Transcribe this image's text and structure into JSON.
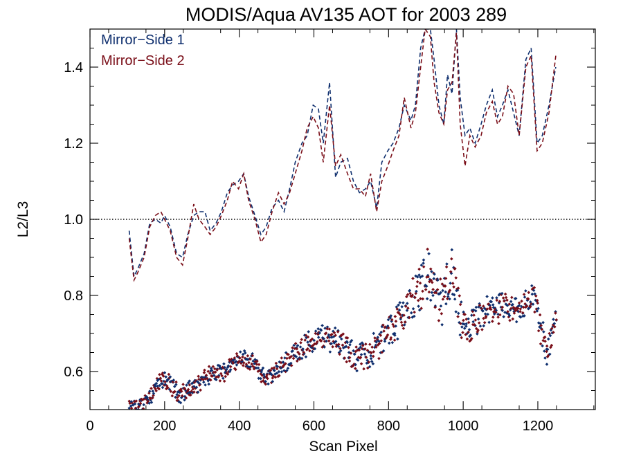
{
  "chart_data": {
    "type": "line",
    "title": "MODIS/Aqua AV135 AOT for 2003 289",
    "xlabel": "Scan Pixel",
    "ylabel": "L2/L3",
    "xlim": [
      0,
      1354
    ],
    "ylim": [
      0.5,
      1.5
    ],
    "xticks": [
      0,
      200,
      400,
      600,
      800,
      1000,
      1200
    ],
    "yticks": [
      0.6,
      0.8,
      1.0,
      1.2,
      1.4
    ],
    "xtick_labels": [
      "0",
      "200",
      "400",
      "600",
      "800",
      "1000",
      "1200"
    ],
    "ytick_labels": [
      "0.6",
      "0.8",
      "1.0",
      "1.2",
      "1.4"
    ],
    "reference_line": {
      "y": 1.0,
      "style": "dotted"
    },
    "grid": false,
    "legend_position": "top-left",
    "series": [
      {
        "name": "Mirror−Side 1",
        "color": "#0f2f6e",
        "kind": "dashed-line",
        "x": [
          105,
          118,
          128,
          145,
          160,
          175,
          190,
          200,
          215,
          232,
          248,
          262,
          278,
          292,
          308,
          322,
          338,
          352,
          368,
          382,
          398,
          412,
          425,
          442,
          458,
          472,
          488,
          505,
          520,
          535,
          550,
          568,
          582,
          598,
          612,
          625,
          642,
          658,
          672,
          690,
          706,
          722,
          738,
          752,
          768,
          782,
          798,
          812,
          828,
          842,
          860,
          872,
          886,
          898,
          912,
          922,
          935,
          948,
          958,
          970,
          982,
          992,
          1005,
          1018,
          1032,
          1048,
          1062,
          1078,
          1092,
          1105,
          1120,
          1135,
          1150,
          1168,
          1182,
          1198,
          1212,
          1230,
          1248
        ],
        "y": [
          0.97,
          0.85,
          0.87,
          0.91,
          0.99,
          1.0,
          0.99,
          1.01,
          0.98,
          0.91,
          0.9,
          0.96,
          1.01,
          1.02,
          1.02,
          0.97,
          0.99,
          1.02,
          1.07,
          1.09,
          1.1,
          1.12,
          1.06,
          1.01,
          0.96,
          0.98,
          1.03,
          1.05,
          1.02,
          1.08,
          1.15,
          1.2,
          1.22,
          1.3,
          1.29,
          1.2,
          1.36,
          1.11,
          1.15,
          1.16,
          1.1,
          1.07,
          1.08,
          1.1,
          1.03,
          1.15,
          1.18,
          1.2,
          1.24,
          1.3,
          1.26,
          1.3,
          1.45,
          1.5,
          1.5,
          1.42,
          1.3,
          1.25,
          1.38,
          1.33,
          1.5,
          1.32,
          1.22,
          1.24,
          1.2,
          1.25,
          1.3,
          1.34,
          1.27,
          1.3,
          1.34,
          1.28,
          1.22,
          1.42,
          1.45,
          1.2,
          1.22,
          1.3,
          1.4
        ]
      },
      {
        "name": "Mirror−Side 2",
        "color": "#7a0e18",
        "kind": "dashed-line",
        "x": [
          105,
          118,
          128,
          145,
          160,
          175,
          190,
          200,
          215,
          232,
          248,
          262,
          278,
          292,
          308,
          322,
          338,
          352,
          368,
          382,
          398,
          412,
          425,
          442,
          458,
          472,
          488,
          505,
          520,
          535,
          550,
          568,
          582,
          598,
          612,
          625,
          642,
          658,
          672,
          690,
          706,
          722,
          738,
          752,
          768,
          782,
          798,
          812,
          828,
          842,
          860,
          872,
          886,
          898,
          912,
          922,
          935,
          948,
          958,
          970,
          982,
          992,
          1005,
          1018,
          1032,
          1048,
          1062,
          1078,
          1092,
          1105,
          1120,
          1135,
          1150,
          1168,
          1182,
          1198,
          1212,
          1230,
          1248
        ],
        "y": [
          0.95,
          0.84,
          0.86,
          0.9,
          0.98,
          1.01,
          1.02,
          1.0,
          0.97,
          0.9,
          0.88,
          0.95,
          1.04,
          1.0,
          0.98,
          0.96,
          0.98,
          1.01,
          1.05,
          1.1,
          1.08,
          1.12,
          1.05,
          1.0,
          0.94,
          0.96,
          1.02,
          1.07,
          1.04,
          1.07,
          1.12,
          1.18,
          1.24,
          1.27,
          1.24,
          1.15,
          1.3,
          1.14,
          1.17,
          1.12,
          1.08,
          1.08,
          1.06,
          1.12,
          1.02,
          1.1,
          1.14,
          1.18,
          1.22,
          1.32,
          1.24,
          1.28,
          1.4,
          1.5,
          1.48,
          1.36,
          1.28,
          1.25,
          1.34,
          1.36,
          1.49,
          1.25,
          1.14,
          1.22,
          1.19,
          1.22,
          1.28,
          1.31,
          1.25,
          1.27,
          1.35,
          1.33,
          1.22,
          1.4,
          1.43,
          1.18,
          1.2,
          1.28,
          1.43
        ]
      }
    ],
    "scatter_trend": [
      {
        "x": 105,
        "y": 0.5,
        "spread": 0.02
      },
      {
        "x": 140,
        "y": 0.51,
        "spread": 0.02
      },
      {
        "x": 170,
        "y": 0.55,
        "spread": 0.025
      },
      {
        "x": 200,
        "y": 0.58,
        "spread": 0.02
      },
      {
        "x": 240,
        "y": 0.54,
        "spread": 0.02
      },
      {
        "x": 280,
        "y": 0.56,
        "spread": 0.02
      },
      {
        "x": 320,
        "y": 0.59,
        "spread": 0.02
      },
      {
        "x": 360,
        "y": 0.6,
        "spread": 0.02
      },
      {
        "x": 400,
        "y": 0.64,
        "spread": 0.02
      },
      {
        "x": 440,
        "y": 0.62,
        "spread": 0.02
      },
      {
        "x": 470,
        "y": 0.58,
        "spread": 0.02
      },
      {
        "x": 500,
        "y": 0.6,
        "spread": 0.02
      },
      {
        "x": 540,
        "y": 0.64,
        "spread": 0.025
      },
      {
        "x": 580,
        "y": 0.67,
        "spread": 0.03
      },
      {
        "x": 620,
        "y": 0.69,
        "spread": 0.03
      },
      {
        "x": 660,
        "y": 0.69,
        "spread": 0.03
      },
      {
        "x": 700,
        "y": 0.64,
        "spread": 0.035
      },
      {
        "x": 740,
        "y": 0.64,
        "spread": 0.035
      },
      {
        "x": 780,
        "y": 0.68,
        "spread": 0.035
      },
      {
        "x": 820,
        "y": 0.73,
        "spread": 0.04
      },
      {
        "x": 860,
        "y": 0.78,
        "spread": 0.05
      },
      {
        "x": 900,
        "y": 0.86,
        "spread": 0.06
      },
      {
        "x": 940,
        "y": 0.78,
        "spread": 0.06
      },
      {
        "x": 970,
        "y": 0.86,
        "spread": 0.06
      },
      {
        "x": 1000,
        "y": 0.7,
        "spread": 0.05
      },
      {
        "x": 1040,
        "y": 0.73,
        "spread": 0.04
      },
      {
        "x": 1080,
        "y": 0.77,
        "spread": 0.035
      },
      {
        "x": 1120,
        "y": 0.76,
        "spread": 0.035
      },
      {
        "x": 1160,
        "y": 0.77,
        "spread": 0.035
      },
      {
        "x": 1190,
        "y": 0.8,
        "spread": 0.035
      },
      {
        "x": 1210,
        "y": 0.7,
        "spread": 0.04
      },
      {
        "x": 1225,
        "y": 0.65,
        "spread": 0.03
      },
      {
        "x": 1250,
        "y": 0.75,
        "spread": 0.03
      }
    ],
    "scatter_note": "Scattered points per mirror side plotted with diamond markers"
  }
}
